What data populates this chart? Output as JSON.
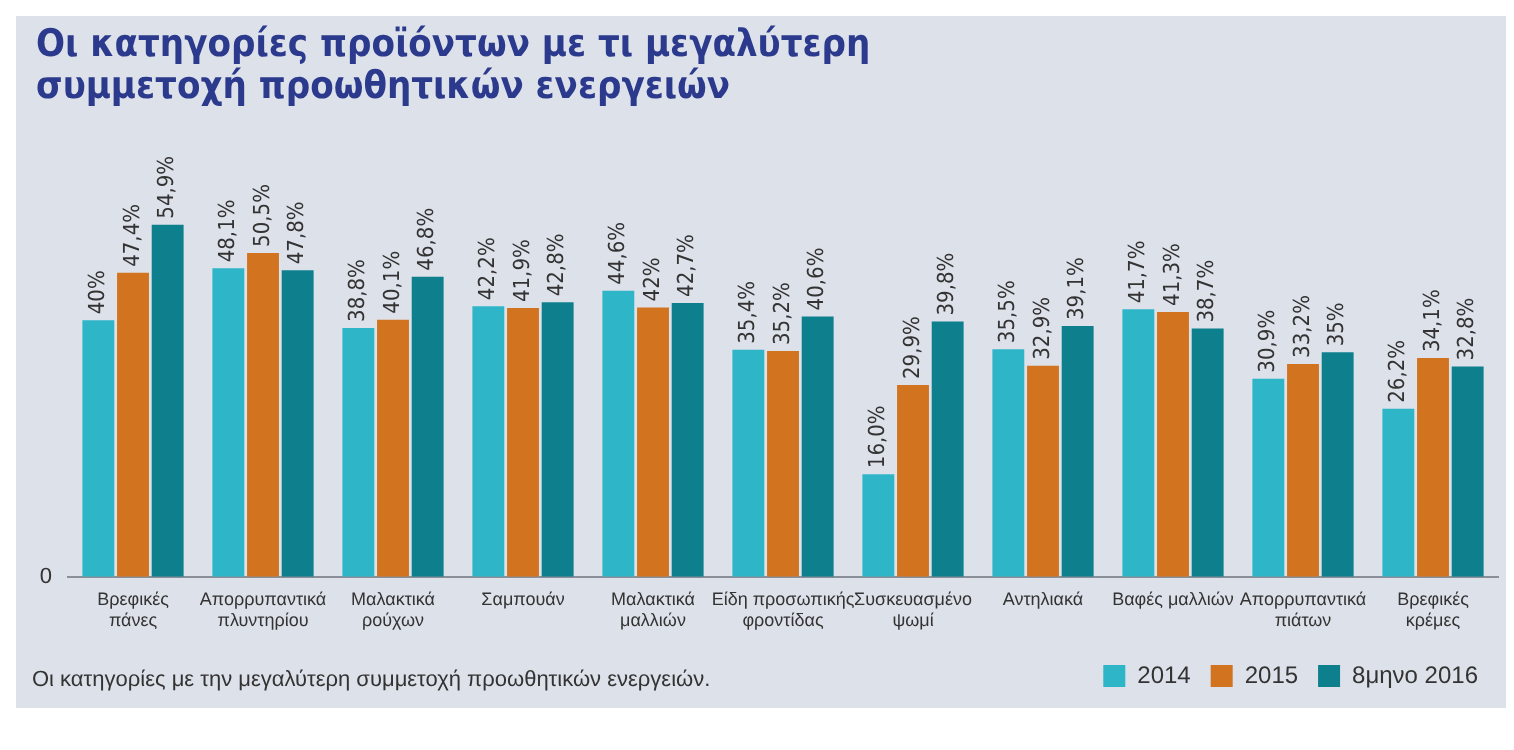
{
  "chart_data": {
    "type": "bar",
    "title": "Οι κατηγορίες προϊόντων με τι μεγαλύτερη συμμετοχή προωθητικών ενεργειών",
    "annotations": [
      "Οι κατηγορίες με την μεγαλύτερη συμμετοχή προωθητικών ενεργειών.",
      "0"
    ],
    "categories": [
      "Βρεφικές\nπάνες",
      "Απορρυπαντικά\nπλυντηρίου",
      "Μαλακτικά\nρούχων",
      "Σαμπουάν",
      "Μαλακτικά\nμαλλιών",
      "Είδη προσωπικής\nφροντίδας",
      "Συσκευασμένο\nψωμί",
      "Αντηλιακά",
      "Βαφές μαλλιών",
      "Απορρυπαντικά\nπιάτων",
      "Βρεφικές\nκρέμες"
    ],
    "series": [
      {
        "name": "2014",
        "color": "#2fb5c8",
        "values": [
          40,
          48.1,
          38.8,
          42.2,
          44.6,
          35.4,
          16.0,
          35.5,
          41.7,
          30.9,
          26.2
        ],
        "value_labels": [
          "40%",
          "48,1%",
          "38,8%",
          "42,2%",
          "44,6%",
          "35,4%",
          "16,0%",
          "35,5%",
          "41,7%",
          "30,9%",
          "26,2%"
        ]
      },
      {
        "name": "2015",
        "color": "#d2731f",
        "values": [
          47.4,
          50.5,
          40.1,
          41.9,
          42,
          35.2,
          29.9,
          32.9,
          41.3,
          33.2,
          34.1
        ],
        "value_labels": [
          "47,4%",
          "50,5%",
          "40,1%",
          "41,9%",
          "42%",
          "35,2%",
          "29,9%",
          "32,9%",
          "41,3%",
          "33,2%",
          "34,1%"
        ]
      },
      {
        "name": "8μηνο 2016",
        "color": "#0e7f8c",
        "values": [
          54.9,
          47.8,
          46.8,
          42.8,
          42.7,
          40.6,
          39.8,
          39.1,
          38.7,
          35,
          32.8
        ],
        "value_labels": [
          "54,9%",
          "47,8%",
          "46,8%",
          "42,8%",
          "42,7%",
          "40,6%",
          "39,8%",
          "39,1%",
          "38,7%",
          "35%",
          "32,8%"
        ]
      }
    ],
    "grid": false,
    "legend": "bottom right"
  }
}
